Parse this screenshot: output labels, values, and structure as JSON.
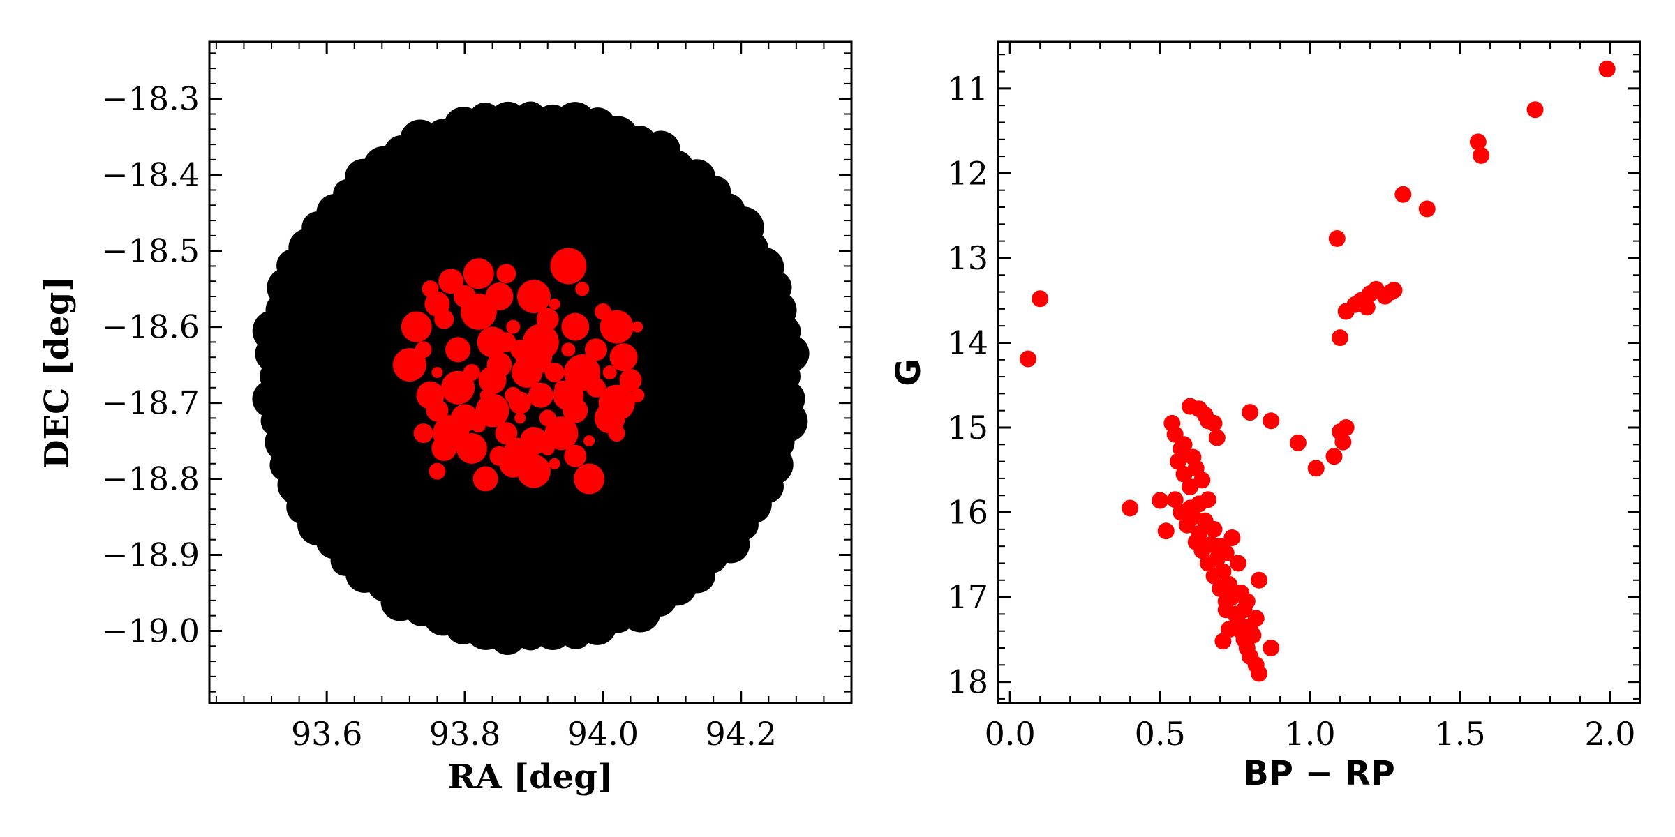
{
  "chart_data": [
    {
      "type": "scatter",
      "title": "",
      "xlabel": "RA [deg]",
      "ylabel": "DEC [deg]",
      "xlim": [
        93.43,
        94.36
      ],
      "ylim": [
        -19.095,
        -18.225
      ],
      "xticks": [
        93.6,
        93.8,
        94.0,
        94.2
      ],
      "xtick_labels": [
        "93.6",
        "93.8",
        "94.0",
        "94.2"
      ],
      "yticks": [
        -18.3,
        -18.4,
        -18.5,
        -18.6,
        -18.7,
        -18.8,
        -18.9,
        -19.0
      ],
      "ytick_labels": [
        "−18.3",
        "−18.4",
        "−18.5",
        "−18.6",
        "−18.7",
        "−18.8",
        "−18.9",
        "−19.0"
      ],
      "grid": false,
      "legend": "none",
      "series": [
        {
          "color": "#000000",
          "marker_size": "large",
          "field": {
            "center": [
              93.895,
              -18.665
            ],
            "radius_deg": 0.38
          },
          "points": []
        },
        {
          "color": "#ff0000",
          "marker_size": "varied",
          "points": [
            [
              93.75,
              -18.55
            ],
            [
              93.78,
              -18.54
            ],
            [
              93.82,
              -18.53
            ],
            [
              93.86,
              -18.53
            ],
            [
              93.95,
              -18.52
            ],
            [
              93.97,
              -18.55
            ],
            [
              93.8,
              -18.56
            ],
            [
              93.85,
              -18.56
            ],
            [
              93.9,
              -18.56
            ],
            [
              93.93,
              -18.57
            ],
            [
              94.0,
              -18.58
            ],
            [
              93.76,
              -18.57
            ],
            [
              93.73,
              -18.6
            ],
            [
              93.77,
              -18.59
            ],
            [
              93.82,
              -18.58
            ],
            [
              93.87,
              -18.6
            ],
            [
              93.92,
              -18.59
            ],
            [
              93.96,
              -18.6
            ],
            [
              94.02,
              -18.6
            ],
            [
              94.05,
              -18.6
            ],
            [
              93.74,
              -18.63
            ],
            [
              93.79,
              -18.63
            ],
            [
              93.84,
              -18.62
            ],
            [
              93.88,
              -18.63
            ],
            [
              93.91,
              -18.62
            ],
            [
              93.95,
              -18.63
            ],
            [
              93.99,
              -18.63
            ],
            [
              94.03,
              -18.64
            ],
            [
              93.72,
              -18.65
            ],
            [
              93.76,
              -18.66
            ],
            [
              93.81,
              -18.66
            ],
            [
              93.85,
              -18.65
            ],
            [
              93.89,
              -18.66
            ],
            [
              93.93,
              -18.66
            ],
            [
              93.97,
              -18.66
            ],
            [
              94.01,
              -18.66
            ],
            [
              94.04,
              -18.67
            ],
            [
              93.75,
              -18.69
            ],
            [
              93.79,
              -18.68
            ],
            [
              93.83,
              -18.69
            ],
            [
              93.87,
              -18.69
            ],
            [
              93.91,
              -18.69
            ],
            [
              93.95,
              -18.69
            ],
            [
              93.99,
              -18.68
            ],
            [
              94.02,
              -18.7
            ],
            [
              94.05,
              -18.69
            ],
            [
              93.76,
              -18.71
            ],
            [
              93.8,
              -18.72
            ],
            [
              93.84,
              -18.71
            ],
            [
              93.88,
              -18.72
            ],
            [
              93.92,
              -18.72
            ],
            [
              93.96,
              -18.71
            ],
            [
              94.01,
              -18.72
            ],
            [
              93.74,
              -18.74
            ],
            [
              93.78,
              -18.74
            ],
            [
              93.82,
              -18.73
            ],
            [
              93.86,
              -18.74
            ],
            [
              93.9,
              -18.75
            ],
            [
              93.94,
              -18.74
            ],
            [
              93.98,
              -18.75
            ],
            [
              94.02,
              -18.74
            ],
            [
              93.77,
              -18.76
            ],
            [
              93.81,
              -18.76
            ],
            [
              93.85,
              -18.77
            ],
            [
              93.88,
              -18.77
            ],
            [
              93.92,
              -18.76
            ],
            [
              93.96,
              -18.77
            ],
            [
              93.87,
              -18.78
            ],
            [
              93.9,
              -18.79
            ],
            [
              93.93,
              -18.78
            ],
            [
              93.76,
              -18.79
            ],
            [
              93.83,
              -18.8
            ],
            [
              93.98,
              -18.8
            ],
            [
              93.86,
              -18.62
            ],
            [
              93.9,
              -18.64
            ],
            [
              93.94,
              -18.68
            ],
            [
              93.88,
              -18.7
            ],
            [
              93.84,
              -18.67
            ]
          ]
        }
      ]
    },
    {
      "type": "scatter",
      "title": "",
      "xlabel": "BP − RP",
      "ylabel": "G",
      "xlim": [
        -0.04,
        2.1
      ],
      "ylim": [
        18.25,
        10.45
      ],
      "y_inverted": true,
      "xticks": [
        0.0,
        0.5,
        1.0,
        1.5,
        2.0
      ],
      "xtick_labels": [
        "0.0",
        "0.5",
        "1.0",
        "1.5",
        "2.0"
      ],
      "yticks": [
        11,
        12,
        13,
        14,
        15,
        16,
        17,
        18
      ],
      "ytick_labels": [
        "11",
        "12",
        "13",
        "14",
        "15",
        "16",
        "17",
        "18"
      ],
      "grid": false,
      "legend": "none",
      "series": [
        {
          "color": "#ff0000",
          "points": [
            [
              1.99,
              10.77
            ],
            [
              1.75,
              11.25
            ],
            [
              1.56,
              11.63
            ],
            [
              1.57,
              11.79
            ],
            [
              1.31,
              12.25
            ],
            [
              1.39,
              12.42
            ],
            [
              1.09,
              12.77
            ],
            [
              0.1,
              13.48
            ],
            [
              0.06,
              14.19
            ],
            [
              1.1,
              13.94
            ],
            [
              1.12,
              13.63
            ],
            [
              1.15,
              13.55
            ],
            [
              1.17,
              13.5
            ],
            [
              1.19,
              13.58
            ],
            [
              1.2,
              13.42
            ],
            [
              1.22,
              13.37
            ],
            [
              1.25,
              13.45
            ],
            [
              1.27,
              13.4
            ],
            [
              1.28,
              13.38
            ],
            [
              0.8,
              14.82
            ],
            [
              0.87,
              14.92
            ],
            [
              0.96,
              15.18
            ],
            [
              1.02,
              15.48
            ],
            [
              1.08,
              15.34
            ],
            [
              1.1,
              15.05
            ],
            [
              1.12,
              15.0
            ],
            [
              1.11,
              15.17
            ],
            [
              0.4,
              15.95
            ],
            [
              0.5,
              15.86
            ],
            [
              0.52,
              16.22
            ],
            [
              0.54,
              14.95
            ],
            [
              0.55,
              15.08
            ],
            [
              0.57,
              15.25
            ],
            [
              0.6,
              14.75
            ],
            [
              0.63,
              14.78
            ],
            [
              0.65,
              14.85
            ],
            [
              0.66,
              14.92
            ],
            [
              0.68,
              14.95
            ],
            [
              0.69,
              15.12
            ],
            [
              0.56,
              15.4
            ],
            [
              0.58,
              15.55
            ],
            [
              0.6,
              15.7
            ],
            [
              0.62,
              15.48
            ],
            [
              0.64,
              15.62
            ],
            [
              0.55,
              15.85
            ],
            [
              0.57,
              16.0
            ],
            [
              0.59,
              16.15
            ],
            [
              0.61,
              16.05
            ],
            [
              0.63,
              16.25
            ],
            [
              0.65,
              16.1
            ],
            [
              0.66,
              15.85
            ],
            [
              0.67,
              16.38
            ],
            [
              0.68,
              16.2
            ],
            [
              0.69,
              16.55
            ],
            [
              0.7,
              16.4
            ],
            [
              0.71,
              16.7
            ],
            [
              0.72,
              16.48
            ],
            [
              0.73,
              16.85
            ],
            [
              0.74,
              17.0
            ],
            [
              0.72,
              17.15
            ],
            [
              0.75,
              17.2
            ],
            [
              0.76,
              17.3
            ],
            [
              0.77,
              17.4
            ],
            [
              0.78,
              17.5
            ],
            [
              0.79,
              17.6
            ],
            [
              0.8,
              17.7
            ],
            [
              0.81,
              17.45
            ],
            [
              0.82,
              17.25
            ],
            [
              0.83,
              16.8
            ],
            [
              0.82,
              17.8
            ],
            [
              0.83,
              17.9
            ],
            [
              0.87,
              17.6
            ],
            [
              0.74,
              16.3
            ],
            [
              0.76,
              16.6
            ],
            [
              0.79,
              17.05
            ],
            [
              0.71,
              17.52
            ],
            [
              0.73,
              17.38
            ],
            [
              0.77,
              16.95
            ],
            [
              0.6,
              15.95
            ],
            [
              0.62,
              16.35
            ],
            [
              0.64,
              16.45
            ],
            [
              0.66,
              16.6
            ],
            [
              0.68,
              16.75
            ],
            [
              0.7,
              16.9
            ],
            [
              0.72,
              17.05
            ],
            [
              0.78,
              17.15
            ],
            [
              0.8,
              17.35
            ],
            [
              0.58,
              15.2
            ],
            [
              0.61,
              15.35
            ],
            [
              0.63,
              15.9
            ]
          ]
        }
      ]
    }
  ]
}
